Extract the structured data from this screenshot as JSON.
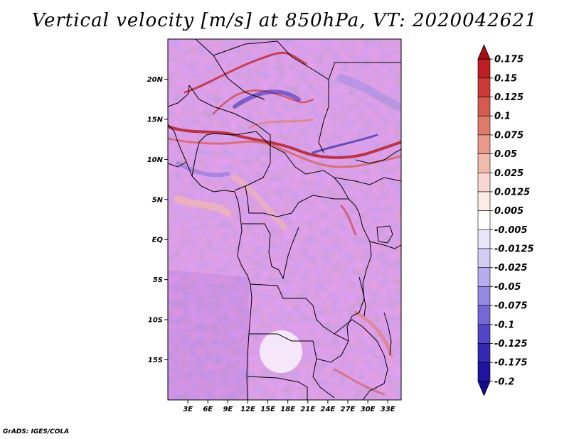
{
  "title": "Vertical velocity [m/s] at 850hPa, VT: 2020042621",
  "credit": "GrADS: IGES/COLA",
  "map": {
    "lon_range": [
      0,
      35
    ],
    "lat_range": [
      -20,
      25
    ],
    "lat_ticks": [
      {
        "value": 20,
        "label": "20N"
      },
      {
        "value": 15,
        "label": "15N"
      },
      {
        "value": 10,
        "label": "10N"
      },
      {
        "value": 5,
        "label": "5N"
      },
      {
        "value": 0,
        "label": "EQ"
      },
      {
        "value": -5,
        "label": "5S"
      },
      {
        "value": -10,
        "label": "10S"
      },
      {
        "value": -15,
        "label": "15S"
      }
    ],
    "lon_ticks": [
      {
        "value": 3,
        "label": "3E"
      },
      {
        "value": 6,
        "label": "6E"
      },
      {
        "value": 9,
        "label": "9E"
      },
      {
        "value": 12,
        "label": "12E"
      },
      {
        "value": 15,
        "label": "15E"
      },
      {
        "value": 18,
        "label": "18E"
      },
      {
        "value": 21,
        "label": "21E"
      },
      {
        "value": 24,
        "label": "24E"
      },
      {
        "value": 27,
        "label": "27E"
      },
      {
        "value": 30,
        "label": "30E"
      },
      {
        "value": 33,
        "label": "33E"
      }
    ]
  },
  "colorbar": {
    "labels": [
      "0.175",
      "0.15",
      "0.125",
      "0.1",
      "0.075",
      "0.05",
      "0.025",
      "0.0125",
      "0.005",
      "-0.005",
      "-0.0125",
      "-0.025",
      "-0.05",
      "-0.075",
      "-0.1",
      "-0.125",
      "-0.175",
      "-0.2"
    ],
    "colors": [
      "#a50f15",
      "#bd1e24",
      "#cb3a36",
      "#d65a50",
      "#e07a6c",
      "#e99a8c",
      "#f2b9ad",
      "#f9d6cf",
      "#fcebe7",
      "#ffffff",
      "#e9e6fb",
      "#d3cdf6",
      "#b5abee",
      "#958ae3",
      "#7467d6",
      "#5246c6",
      "#3328b3",
      "#1e14a0",
      "#140a8c"
    ]
  },
  "colors": {
    "border": "#000000",
    "ocean_tint": "#d8d6f6"
  }
}
